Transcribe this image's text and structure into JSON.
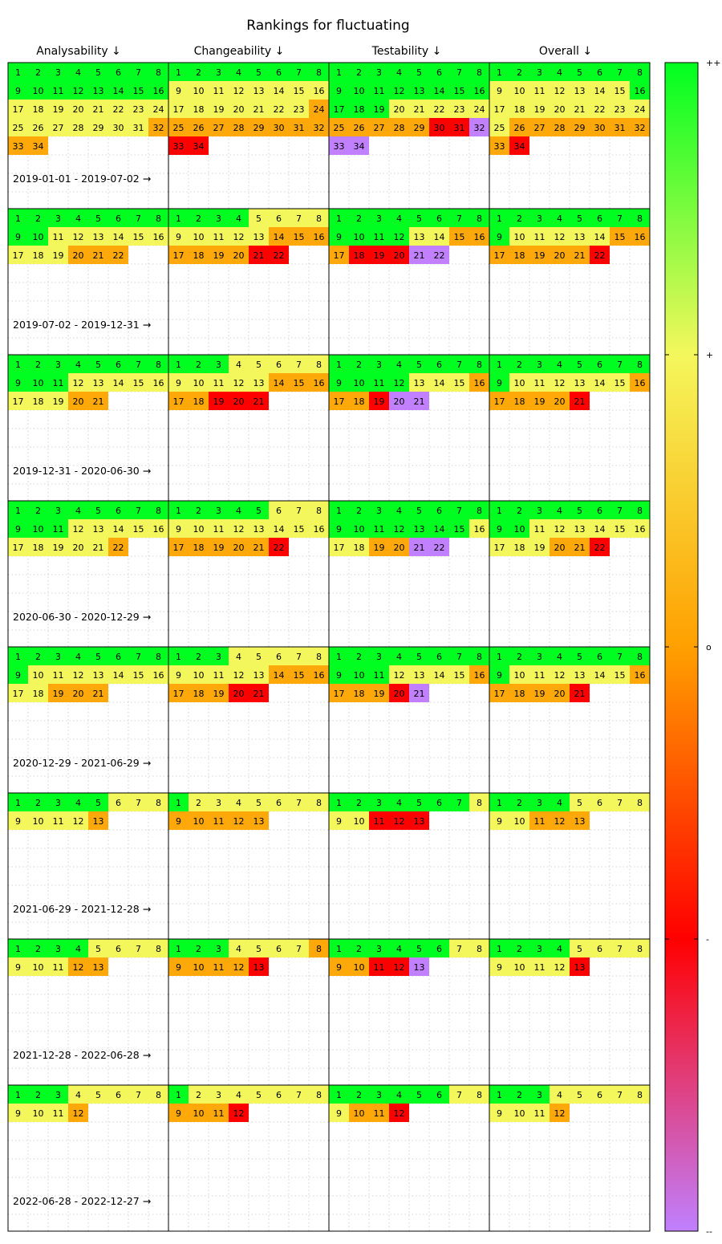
{
  "chart_data": {
    "type": "heatmap",
    "title": "Rankings for fluctuating",
    "columns": [
      "Analysability ↓",
      "Changeability ↓",
      "Testability ↓",
      "Overall ↓"
    ],
    "colorbar": {
      "labels": [
        "++",
        "+",
        "o",
        "-",
        "--"
      ],
      "stops": [
        "#00ff20",
        "#f4f75c",
        "#ffa000",
        "#ff0000",
        "#c080ff"
      ]
    },
    "grid": true,
    "periods": [
      {
        "label": "2019-01-01 - 2019-07-02 →",
        "count": 34,
        "values": [
          [
            2,
            2,
            2,
            2,
            2,
            2,
            2,
            2,
            2,
            2,
            2,
            2,
            2,
            2,
            2,
            2,
            1,
            1,
            1,
            1,
            1,
            1,
            1,
            1,
            1,
            1,
            1,
            1,
            1,
            1,
            1,
            0.1,
            0.1,
            0.1
          ],
          [
            2,
            2,
            2,
            2,
            2,
            2,
            2,
            2,
            1,
            1,
            1,
            1,
            1,
            1,
            1,
            1,
            1,
            1,
            1,
            1,
            1,
            1,
            1,
            0.1,
            0.1,
            0.1,
            0.1,
            0.1,
            0.1,
            0.1,
            0.1,
            0.1,
            -1,
            -1
          ],
          [
            2,
            2,
            2,
            2,
            2,
            2,
            2,
            2,
            2,
            2,
            2,
            2,
            2,
            2,
            2,
            2,
            2,
            2,
            2,
            1,
            1,
            1,
            1,
            1,
            0.1,
            0.1,
            0.1,
            0.1,
            0.1,
            -1,
            -1,
            -2,
            -2,
            -2
          ],
          [
            2,
            2,
            2,
            2,
            2,
            2,
            2,
            2,
            1,
            1,
            1,
            1,
            1,
            1,
            1,
            2,
            1,
            1,
            1,
            1,
            1,
            1,
            1,
            1,
            1,
            0.1,
            0.1,
            0.1,
            0.1,
            0.1,
            0.1,
            0.1,
            0.1,
            -1
          ]
        ]
      },
      {
        "label": "2019-07-02 - 2019-12-31 →",
        "count": 22,
        "values": [
          [
            2,
            2,
            2,
            2,
            2,
            2,
            2,
            2,
            2,
            2,
            1,
            1,
            1,
            1,
            1,
            1,
            1,
            1,
            1,
            0.1,
            0.1,
            0.1
          ],
          [
            2,
            2,
            2,
            2,
            1,
            1,
            1,
            1,
            1,
            1,
            1,
            1,
            1,
            0.1,
            0.1,
            0.1,
            0.1,
            0.1,
            0.1,
            0.1,
            -1,
            -1
          ],
          [
            2,
            2,
            2,
            2,
            2,
            2,
            2,
            2,
            2,
            2,
            2,
            2,
            1,
            1,
            0.1,
            0.1,
            0.1,
            -1,
            -1,
            -1,
            -2,
            -2
          ],
          [
            2,
            2,
            2,
            2,
            2,
            2,
            2,
            2,
            2,
            1,
            1,
            1,
            1,
            1,
            0.1,
            0.1,
            0.1,
            0.1,
            0.1,
            0.1,
            0.1,
            -1
          ]
        ]
      },
      {
        "label": "2019-12-31 - 2020-06-30 →",
        "count": 21,
        "values": [
          [
            2,
            2,
            2,
            2,
            2,
            2,
            2,
            2,
            2,
            2,
            2,
            1,
            1,
            1,
            1,
            1,
            1,
            1,
            1,
            0.1,
            0.1
          ],
          [
            2,
            2,
            2,
            1,
            1,
            1,
            1,
            1,
            1,
            1,
            1,
            1,
            1,
            0.1,
            0.1,
            0.1,
            0.1,
            0.1,
            -1,
            -1,
            -1
          ],
          [
            2,
            2,
            2,
            2,
            2,
            2,
            2,
            2,
            2,
            2,
            2,
            2,
            1,
            1,
            1,
            0.1,
            0.1,
            0.1,
            -1,
            -2,
            -2
          ],
          [
            2,
            2,
            2,
            2,
            2,
            2,
            2,
            2,
            2,
            1,
            1,
            1,
            1,
            1,
            1,
            0.1,
            0.1,
            0.1,
            0.1,
            0.1,
            -1
          ]
        ]
      },
      {
        "label": "2020-06-30 - 2020-12-29 →",
        "count": 22,
        "values": [
          [
            2,
            2,
            2,
            2,
            2,
            2,
            2,
            2,
            2,
            2,
            2,
            1,
            1,
            1,
            1,
            1,
            1,
            1,
            1,
            1,
            1,
            0.1
          ],
          [
            2,
            2,
            2,
            2,
            2,
            1,
            1,
            1,
            1,
            1,
            1,
            1,
            1,
            1,
            1,
            1,
            0.1,
            0.1,
            0.1,
            0.1,
            0.1,
            -1
          ],
          [
            2,
            2,
            2,
            2,
            2,
            2,
            2,
            2,
            2,
            2,
            2,
            2,
            2,
            2,
            2,
            1,
            1,
            1,
            0.1,
            0.1,
            -2,
            -2
          ],
          [
            2,
            2,
            2,
            2,
            2,
            2,
            2,
            2,
            2,
            2,
            1,
            1,
            1,
            1,
            1,
            1,
            1,
            1,
            1,
            0.1,
            0.1,
            -1
          ]
        ]
      },
      {
        "label": "2020-12-29 - 2021-06-29 →",
        "count": 21,
        "values": [
          [
            2,
            2,
            2,
            2,
            2,
            2,
            2,
            2,
            2,
            1,
            1,
            1,
            1,
            1,
            1,
            1,
            1,
            1,
            0.1,
            0.1,
            0.1
          ],
          [
            2,
            2,
            2,
            1,
            1,
            1,
            1,
            1,
            1,
            1,
            1,
            1,
            1,
            0.1,
            0.1,
            0.1,
            0.1,
            0.1,
            0.1,
            -1,
            -1
          ],
          [
            2,
            2,
            2,
            2,
            2,
            2,
            2,
            2,
            2,
            2,
            2,
            1,
            1,
            1,
            1,
            0.1,
            0.1,
            0.1,
            0.1,
            -1,
            -2
          ],
          [
            2,
            2,
            2,
            2,
            2,
            2,
            2,
            2,
            2,
            1,
            1,
            1,
            1,
            1,
            1,
            0.1,
            0.1,
            0.1,
            0.1,
            0.1,
            -1
          ]
        ]
      },
      {
        "label": "2021-06-29 - 2021-12-28 →",
        "count": 13,
        "values": [
          [
            2,
            2,
            2,
            2,
            2,
            1,
            1,
            1,
            1,
            1,
            1,
            1,
            0.1
          ],
          [
            2,
            1,
            1,
            1,
            1,
            1,
            1,
            1,
            0.1,
            0.1,
            0.1,
            0.1,
            0.1
          ],
          [
            2,
            2,
            2,
            2,
            2,
            2,
            2,
            1,
            1,
            1,
            -1,
            -1,
            -1
          ],
          [
            2,
            2,
            2,
            2,
            1,
            1,
            1,
            1,
            1,
            1,
            0.1,
            0.1,
            0.1
          ]
        ]
      },
      {
        "label": "2021-12-28 - 2022-06-28 →",
        "count": 13,
        "values": [
          [
            2,
            2,
            2,
            2,
            1,
            1,
            1,
            1,
            1,
            1,
            1,
            0.1,
            0.1
          ],
          [
            2,
            2,
            2,
            1,
            1,
            1,
            1,
            0.1,
            0.1,
            0.1,
            0.1,
            0.1,
            -1
          ],
          [
            2,
            2,
            2,
            2,
            2,
            2,
            1,
            1,
            0.1,
            0.1,
            -1,
            -1,
            -2
          ],
          [
            2,
            2,
            2,
            2,
            1,
            1,
            1,
            1,
            1,
            1,
            1,
            1,
            -1
          ]
        ]
      },
      {
        "label": "2022-06-28 - 2022-12-27 →",
        "count": 12,
        "values": [
          [
            2,
            2,
            2,
            1,
            1,
            1,
            1,
            1,
            1,
            1,
            1,
            0.1
          ],
          [
            2,
            1,
            1,
            1,
            1,
            1,
            1,
            1,
            0.1,
            0.1,
            0.1,
            -1
          ],
          [
            2,
            2,
            2,
            2,
            2,
            2,
            1,
            1,
            1,
            0.1,
            0.1,
            -1
          ],
          [
            2,
            2,
            2,
            1,
            1,
            1,
            1,
            1,
            1,
            1,
            1,
            0.1
          ]
        ]
      }
    ]
  }
}
